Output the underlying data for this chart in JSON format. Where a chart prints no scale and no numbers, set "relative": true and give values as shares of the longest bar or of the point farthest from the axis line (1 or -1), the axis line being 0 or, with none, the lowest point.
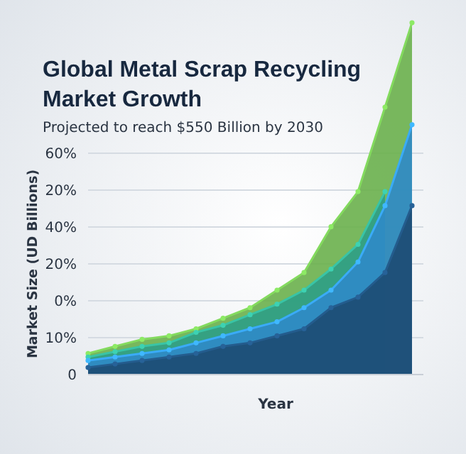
{
  "chart_data": {
    "type": "area",
    "title": "Global Metal Scrap Recycling Market Growth",
    "subtitle": "Projected to reach $550 Billion by 2030",
    "xlabel": "Year",
    "ylabel": "Market Size (UD Billions)",
    "annotations": [
      "0",
      "10%",
      "0%",
      "20%",
      "40%",
      "20%",
      "60%"
    ],
    "categories": [
      null,
      null,
      null,
      null,
      null,
      null,
      null,
      null,
      null,
      null,
      null,
      null,
      null
    ],
    "relative": true,
    "series": [
      {
        "color": "#6ab04c",
        "values": [
          0.06,
          0.08,
          0.1,
          0.11,
          0.13,
          0.16,
          0.19,
          0.24,
          0.29,
          0.42,
          0.52,
          0.76,
          1
        ]
      },
      {
        "color": "#2e9e86",
        "values": [
          0.05,
          0.065,
          0.08,
          0.09,
          0.12,
          0.14,
          0.17,
          0.2,
          0.24,
          0.3,
          0.37,
          0.52,
          null
        ]
      },
      {
        "color": "#2f8ac8",
        "values": [
          0.04,
          0.05,
          0.06,
          0.07,
          0.09,
          0.11,
          0.13,
          0.15,
          0.19,
          0.24,
          0.32,
          0.48,
          0.71
        ]
      },
      {
        "color": "#1d4a72",
        "values": [
          0.02,
          0.03,
          0.04,
          0.05,
          0.06,
          0.08,
          0.09,
          0.11,
          0.13,
          0.19,
          0.22,
          0.29,
          0.48
        ]
      }
    ],
    "grid": "y",
    "marker": "circle"
  }
}
